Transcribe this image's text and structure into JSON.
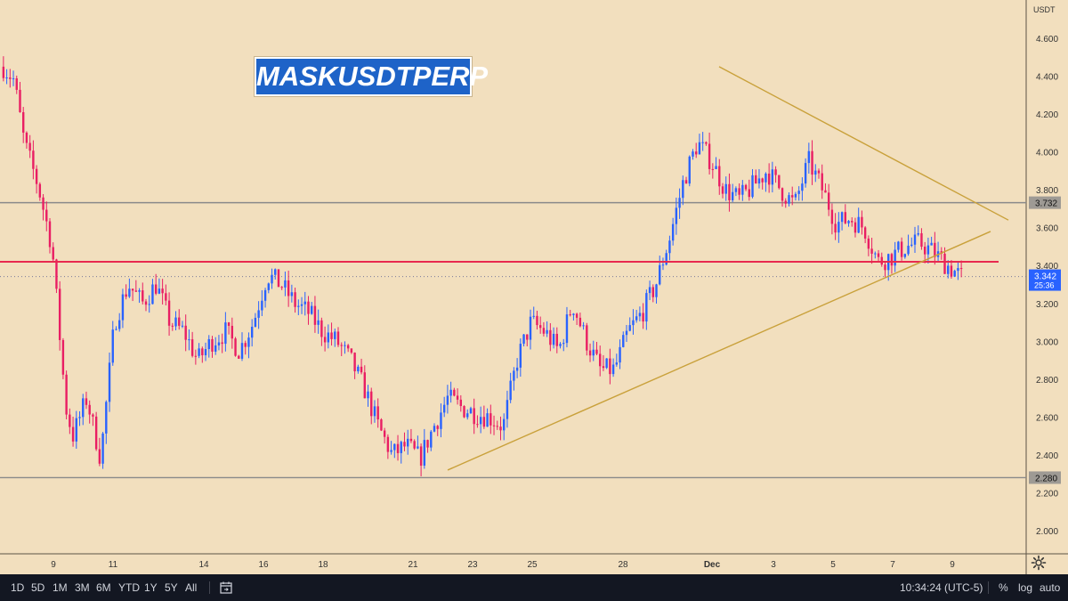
{
  "symbol_label": "MASKUSDTPERP",
  "currency": "USDT",
  "colors": {
    "background": "#f2dfbe",
    "up": "#2962ff",
    "down": "#e91e63",
    "trendline": "#c9a13b",
    "horizontal_level": "#8a8a8a",
    "key_level": "#e8294f",
    "last_price_badge": "#2962ff",
    "title_badge": "#1e63c8"
  },
  "bottom_bar": {
    "ranges": [
      "1D",
      "5D",
      "1M",
      "3M",
      "6M",
      "YTD",
      "1Y",
      "5Y",
      "All"
    ],
    "clock": "10:34:24 (UTC-5)",
    "percent_label": "%",
    "log_label": "log",
    "auto_label": "auto",
    "goto_icon": "calendar-goto-icon",
    "settings_icon": "gear-icon"
  },
  "chart_data": {
    "type": "candlestick",
    "title": "MASKUSDTPERP",
    "ylabel": "USDT",
    "ylim": [
      1.85,
      4.72
    ],
    "y_ticks": [
      "4.600",
      "4.400",
      "4.200",
      "4.000",
      "3.800",
      "3.600",
      "3.400",
      "3.200",
      "3.000",
      "2.800",
      "2.600",
      "2.400",
      "2.200",
      "2.000"
    ],
    "x_ticks": [
      "9",
      "11",
      "14",
      "16",
      "18",
      "21",
      "23",
      "25",
      "28",
      "Dec",
      "3",
      "5",
      "7",
      "9"
    ],
    "horizontal_levels": [
      {
        "price": 3.732,
        "label": "3.732"
      },
      {
        "price": 2.28,
        "label": "2.280"
      }
    ],
    "key_level": {
      "price": 3.42
    },
    "last_price": {
      "price": 3.342,
      "label": "3.342",
      "countdown": "25:36"
    },
    "trendlines": [
      {
        "name": "upper",
        "points": [
          [
            "Nov 30",
            4.45
          ],
          [
            "Dec 10",
            3.64
          ]
        ]
      },
      {
        "name": "lower",
        "points": [
          [
            "Nov 22",
            2.32
          ],
          [
            "Dec 10",
            3.58
          ]
        ]
      }
    ],
    "price_path": [
      [
        0,
        4.45
      ],
      [
        0.015,
        4.38
      ],
      [
        0.03,
        4.05
      ],
      [
        0.05,
        3.82
      ],
      [
        0.07,
        3.5
      ],
      [
        0.09,
        2.65
      ],
      [
        0.1,
        2.5
      ],
      [
        0.12,
        2.7
      ],
      [
        0.14,
        2.38
      ],
      [
        0.16,
        3.1
      ],
      [
        0.18,
        3.3
      ],
      [
        0.2,
        3.2
      ],
      [
        0.22,
        3.3
      ],
      [
        0.24,
        3.1
      ],
      [
        0.26,
        3.05
      ],
      [
        0.28,
        2.9
      ],
      [
        0.3,
        3.0
      ],
      [
        0.32,
        3.05
      ],
      [
        0.34,
        2.95
      ],
      [
        0.36,
        3.1
      ],
      [
        0.38,
        3.35
      ],
      [
        0.4,
        3.3
      ],
      [
        0.42,
        3.2
      ],
      [
        0.44,
        3.15
      ],
      [
        0.46,
        3.05
      ],
      [
        0.48,
        3.0
      ],
      [
        0.5,
        2.9
      ],
      [
        0.52,
        2.75
      ],
      [
        0.54,
        2.55
      ],
      [
        0.56,
        2.4
      ],
      [
        0.58,
        2.45
      ],
      [
        0.6,
        2.38
      ],
      [
        0.62,
        2.55
      ],
      [
        0.64,
        2.7
      ],
      [
        0.66,
        2.65
      ],
      [
        0.68,
        2.62
      ],
      [
        0.7,
        2.6
      ],
      [
        0.72,
        2.55
      ],
      [
        0.74,
        2.9
      ],
      [
        0.76,
        3.1
      ],
      [
        0.78,
        3.05
      ],
      [
        0.8,
        2.95
      ],
      [
        0.82,
        3.2
      ],
      [
        0.84,
        3.0
      ],
      [
        0.86,
        2.85
      ],
      [
        0.88,
        2.85
      ],
      [
        0.9,
        3.05
      ],
      [
        0.92,
        3.15
      ],
      [
        0.94,
        3.3
      ],
      [
        0.96,
        3.55
      ],
      [
        0.98,
        3.85
      ],
      [
        1.0,
        4.05
      ],
      [
        1.02,
        3.95
      ],
      [
        1.04,
        3.8
      ],
      [
        1.06,
        3.75
      ],
      [
        1.08,
        3.82
      ],
      [
        1.1,
        3.9
      ],
      [
        1.12,
        3.8
      ],
      [
        1.14,
        3.72
      ],
      [
        1.16,
        3.95
      ],
      [
        1.18,
        3.8
      ],
      [
        1.2,
        3.62
      ],
      [
        1.22,
        3.65
      ],
      [
        1.24,
        3.6
      ],
      [
        1.26,
        3.42
      ],
      [
        1.28,
        3.45
      ],
      [
        1.3,
        3.5
      ],
      [
        1.32,
        3.52
      ],
      [
        1.34,
        3.47
      ],
      [
        1.36,
        3.4
      ],
      [
        1.38,
        3.34
      ]
    ]
  }
}
